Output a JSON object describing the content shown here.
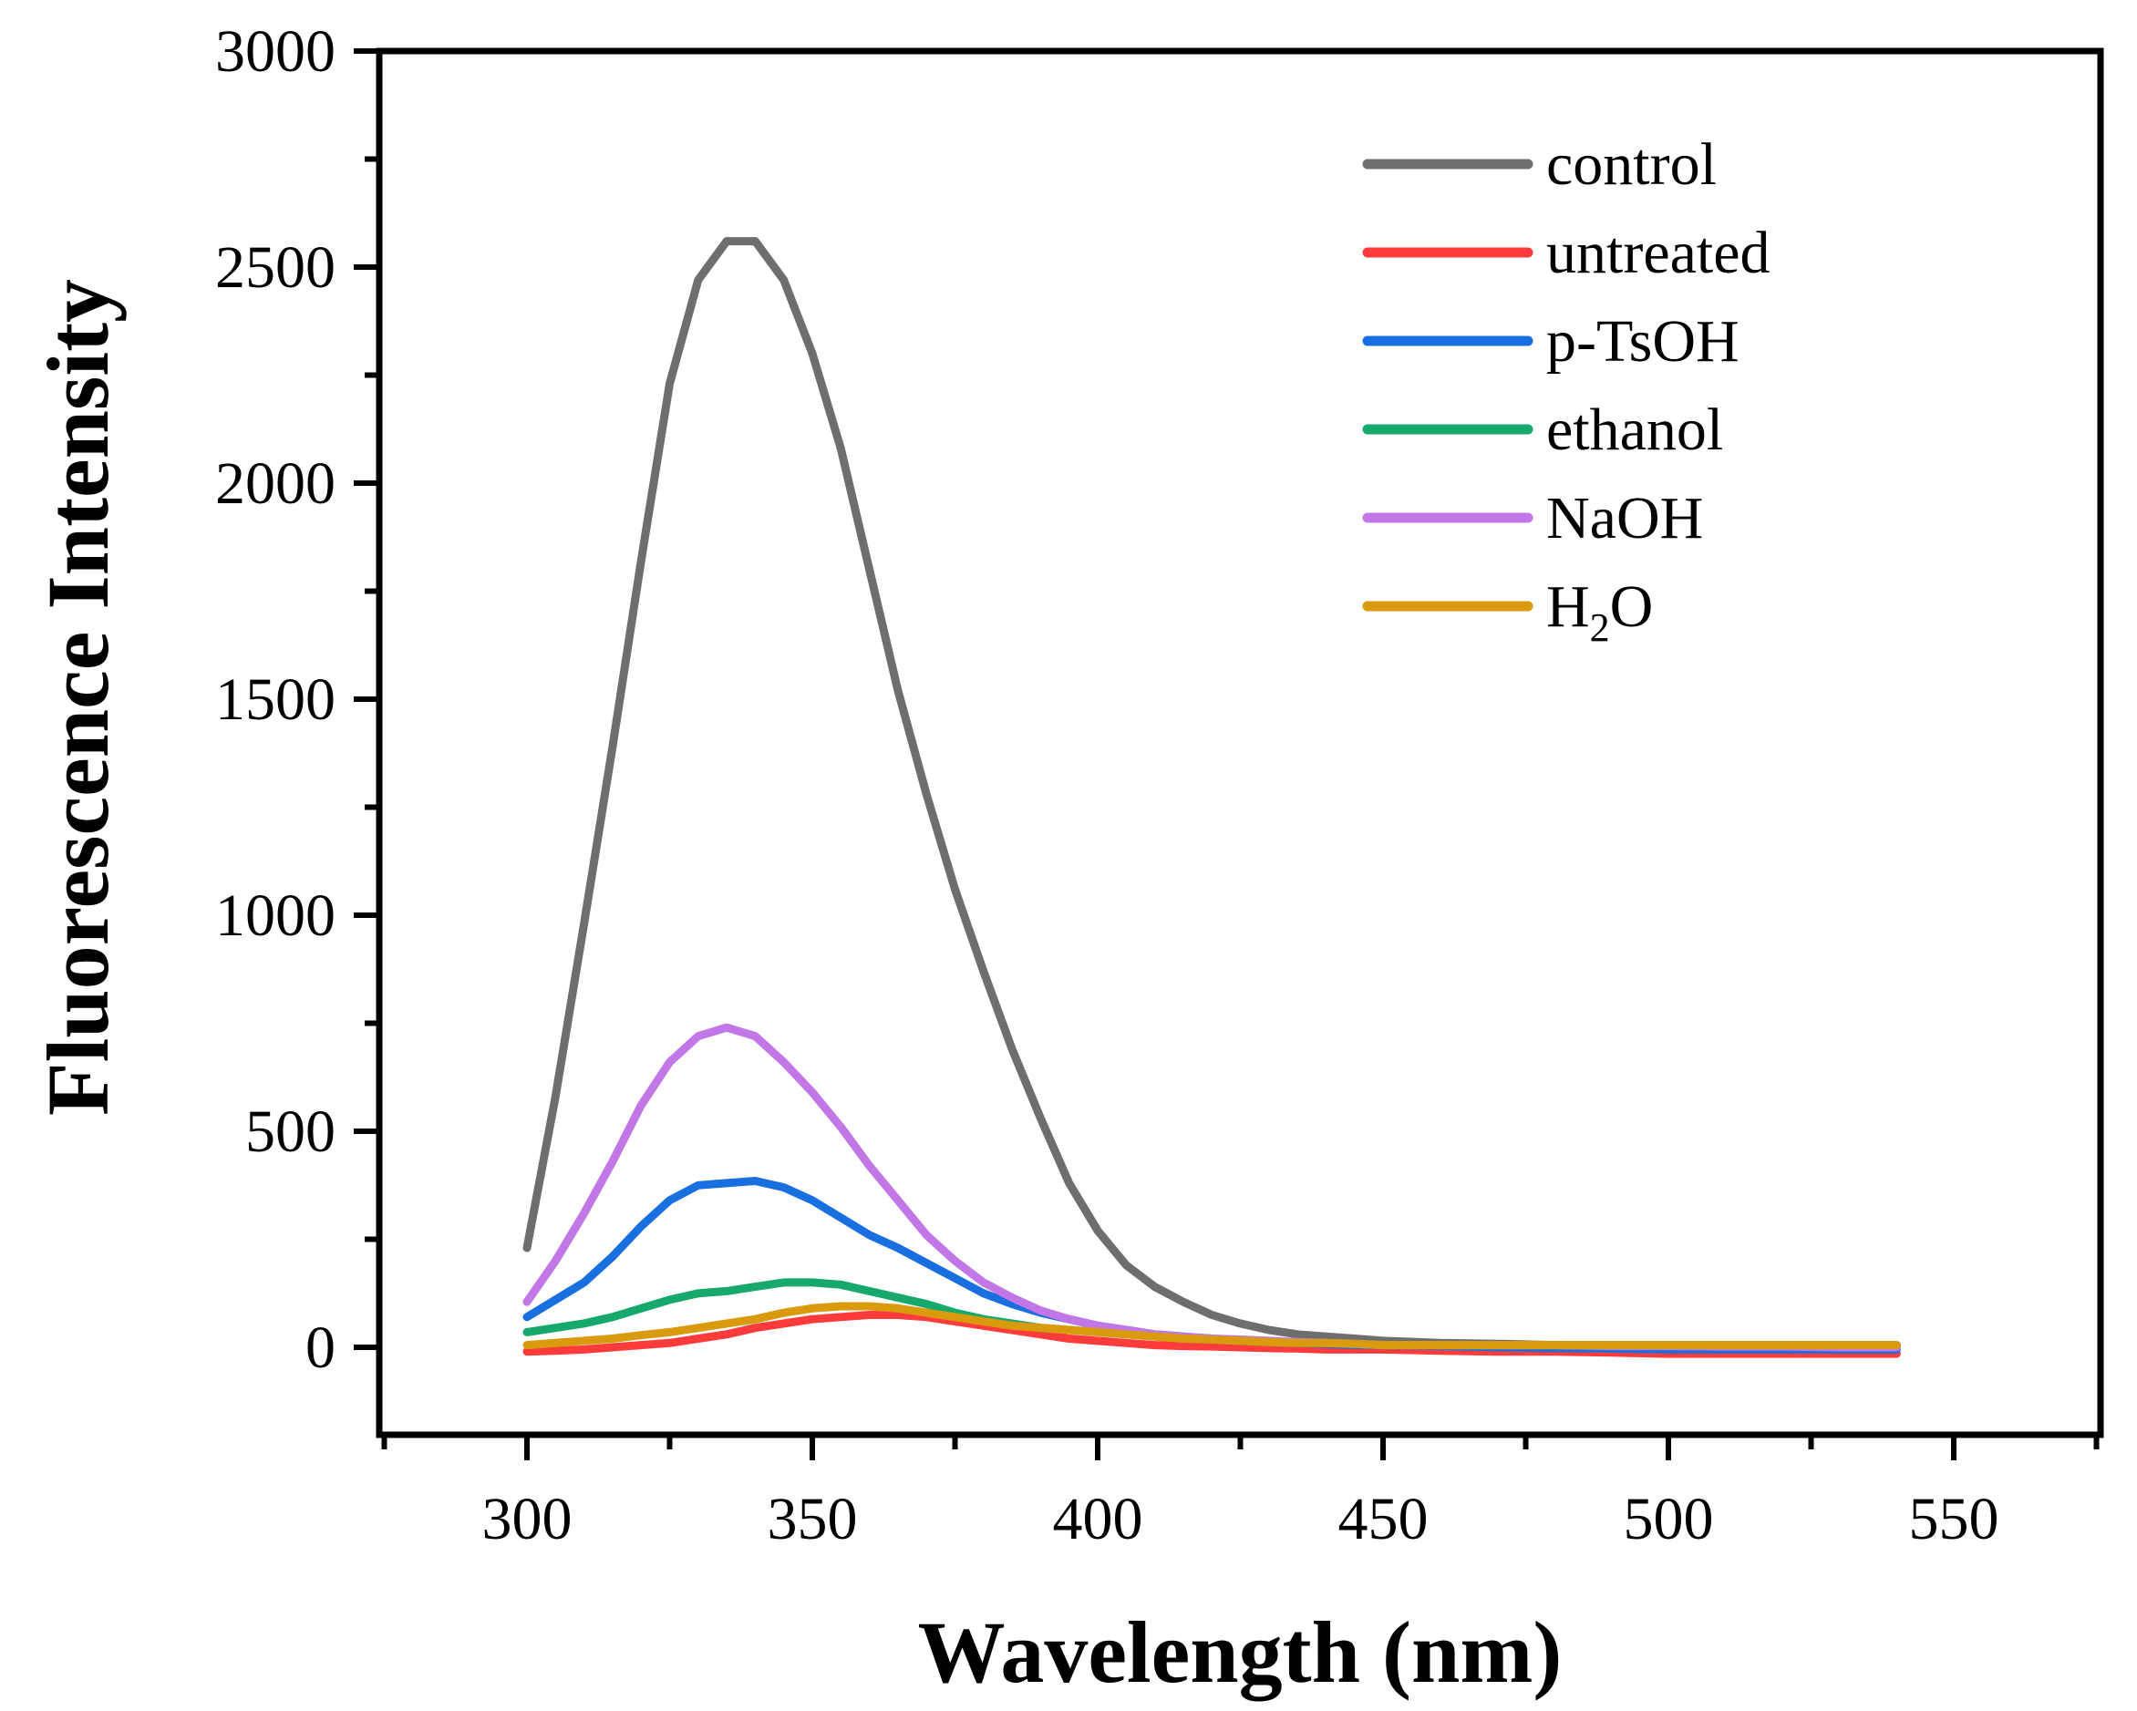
{
  "chart_data": {
    "type": "line",
    "title": "",
    "xlabel": "Wavelength (nm)",
    "ylabel": "Fluorescence Intensity",
    "xlim": [
      275,
      575
    ],
    "ylim": [
      -200,
      3000
    ],
    "x_ticks": [
      300,
      350,
      400,
      450,
      500,
      550
    ],
    "x_tick_labels": [
      "300",
      "350",
      "400",
      "450",
      "500",
      "550"
    ],
    "y_ticks": [
      0,
      500,
      1000,
      1500,
      2000,
      2500,
      3000
    ],
    "y_tick_labels": [
      "0",
      "500",
      "1000",
      "1500",
      "2000",
      "2500",
      "3000"
    ],
    "x_minor_ticks": [
      275,
      325,
      375,
      425,
      475,
      525,
      575
    ],
    "y_minor_ticks": [
      -250,
      250,
      750,
      1250,
      1750,
      2250,
      2750
    ],
    "grid": false,
    "legend_position": "top-right",
    "x": [
      300,
      305,
      310,
      315,
      320,
      325,
      330,
      335,
      340,
      345,
      350,
      355,
      360,
      365,
      370,
      375,
      380,
      385,
      390,
      395,
      400,
      405,
      410,
      415,
      420,
      425,
      430,
      435,
      440,
      445,
      450,
      460,
      470,
      480,
      490,
      500,
      510,
      520,
      530,
      540
    ],
    "series": [
      {
        "name": "control",
        "color": "#6e6e6e",
        "values": [
          230,
          580,
          980,
          1390,
          1820,
          2230,
          2470,
          2560,
          2560,
          2470,
          2300,
          2080,
          1800,
          1520,
          1280,
          1060,
          870,
          690,
          530,
          380,
          270,
          190,
          140,
          105,
          75,
          55,
          40,
          30,
          25,
          20,
          15,
          10,
          8,
          5,
          3,
          2,
          0,
          0,
          0,
          0
        ]
      },
      {
        "name": "untreated",
        "color": "#ff3b3b",
        "values": [
          -10,
          -8,
          -5,
          0,
          5,
          10,
          20,
          30,
          45,
          55,
          65,
          70,
          75,
          75,
          70,
          60,
          50,
          40,
          30,
          20,
          15,
          10,
          5,
          3,
          2,
          0,
          -2,
          -3,
          -5,
          -5,
          -5,
          -8,
          -10,
          -10,
          -12,
          -15,
          -15,
          -15,
          -15,
          -15
        ]
      },
      {
        "name": "p-TsOH",
        "color": "#1a6fe0",
        "values": [
          70,
          110,
          150,
          210,
          280,
          340,
          375,
          380,
          385,
          370,
          340,
          300,
          260,
          230,
          195,
          160,
          125,
          100,
          80,
          65,
          50,
          40,
          30,
          25,
          20,
          15,
          12,
          10,
          8,
          5,
          5,
          3,
          0,
          -2,
          -3,
          -5,
          -5,
          -5,
          -5,
          -5
        ]
      },
      {
        "name": "ethanol",
        "color": "#17a86b",
        "values": [
          35,
          45,
          55,
          70,
          90,
          110,
          125,
          130,
          140,
          150,
          150,
          145,
          130,
          115,
          100,
          80,
          65,
          55,
          45,
          40,
          35,
          30,
          25,
          20,
          18,
          15,
          12,
          10,
          10,
          8,
          5,
          5,
          5,
          5,
          5,
          5,
          5,
          5,
          5,
          5
        ]
      },
      {
        "name": "NaOH",
        "color": "#c277e6",
        "values": [
          105,
          200,
          310,
          430,
          560,
          660,
          720,
          740,
          720,
          660,
          590,
          510,
          420,
          340,
          260,
          200,
          150,
          115,
          85,
          65,
          50,
          40,
          30,
          25,
          20,
          18,
          15,
          12,
          10,
          8,
          5,
          5,
          5,
          5,
          3,
          3,
          2,
          2,
          0,
          0
        ]
      },
      {
        "name": "H2O",
        "color": "#d99a0e",
        "values": [
          5,
          10,
          15,
          20,
          28,
          35,
          45,
          55,
          65,
          80,
          90,
          95,
          95,
          90,
          80,
          70,
          60,
          50,
          45,
          40,
          35,
          30,
          25,
          20,
          18,
          15,
          12,
          10,
          10,
          8,
          5,
          5,
          5,
          5,
          5,
          5,
          5,
          5,
          5,
          5
        ]
      }
    ],
    "legend_labels": [
      {
        "base": "control",
        "sub": "",
        "tail": ""
      },
      {
        "base": "untreated",
        "sub": "",
        "tail": ""
      },
      {
        "base": "p-TsOH",
        "sub": "",
        "tail": ""
      },
      {
        "base": "ethanol",
        "sub": "",
        "tail": ""
      },
      {
        "base": "NaOH",
        "sub": "",
        "tail": ""
      },
      {
        "base": "H",
        "sub": "2",
        "tail": "O"
      }
    ]
  }
}
